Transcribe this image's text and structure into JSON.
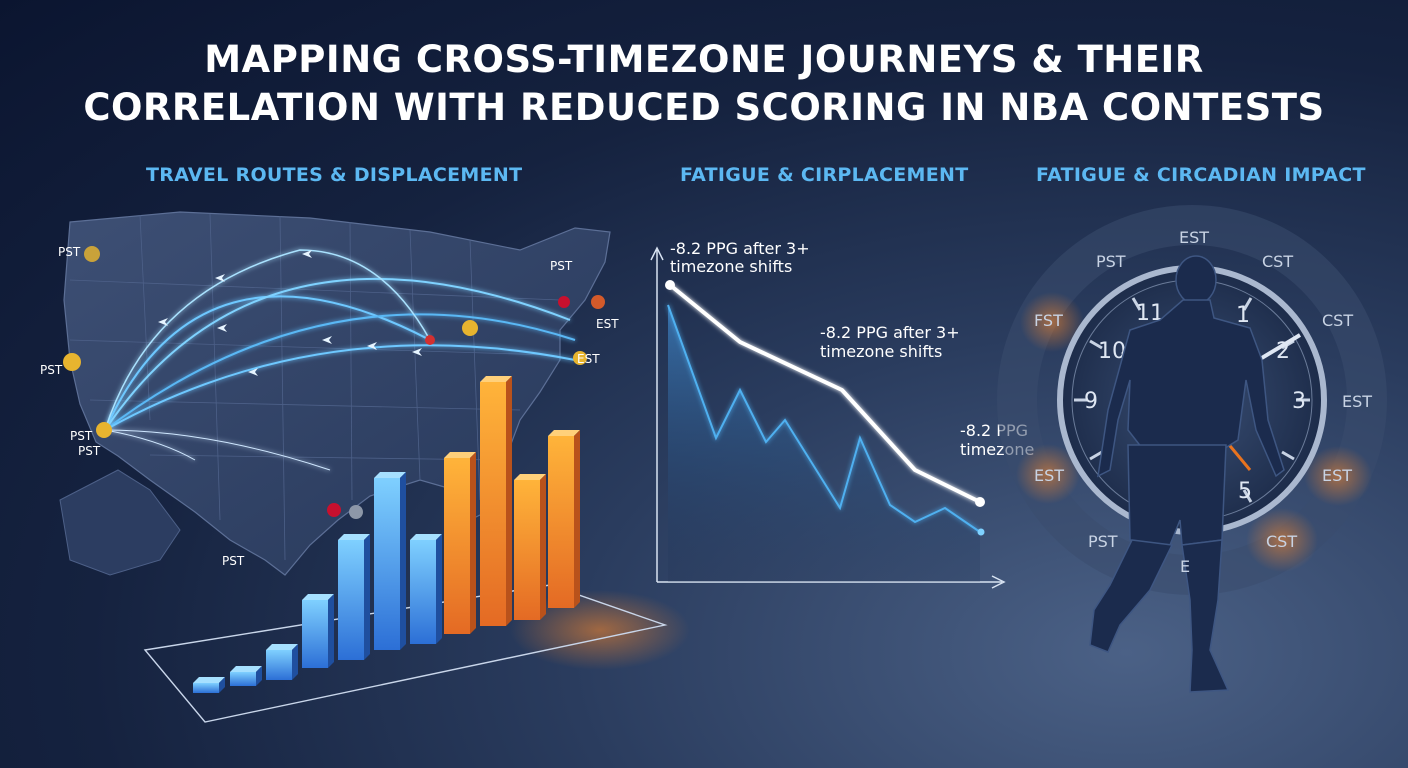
{
  "title_line1": "MAPPING CROSS-TIMEZONE JOURNEYS & THEIR",
  "title_line2": "CORRELATION WITH REDUCED SCORING IN NBA CONTESTS",
  "sections": {
    "travel": "TRAVEL ROUTES & DISPLACEMENT",
    "fatigue": "FATIGUE & CIRPLACEMENT",
    "circadian": "FATIGUE & CIRCADIAN IMPACT"
  },
  "map_labels": [
    "PST",
    "PST",
    "PST",
    "PST",
    "PST",
    "EST",
    "PST",
    "EST"
  ],
  "line_chart": {
    "annotations": [
      "-8.2 PPG after 3+",
      "timezone shifts",
      "-8.2 PPG after 3+",
      "timezone shifts",
      "-8.2 PPG",
      "timezone"
    ]
  },
  "clock": {
    "numerals": [
      "11",
      "1",
      "10",
      "2",
      "9",
      "3",
      "5"
    ],
    "zones": [
      "EST",
      "PST",
      "CST",
      "FST",
      "CST",
      "EST",
      "EST",
      "EST",
      "PST",
      "CST",
      "E"
    ]
  },
  "colors": {
    "accent_blue": "#5cb8f2",
    "bar_orange": "#f39a2a",
    "clock_orange": "#e8731f"
  }
}
